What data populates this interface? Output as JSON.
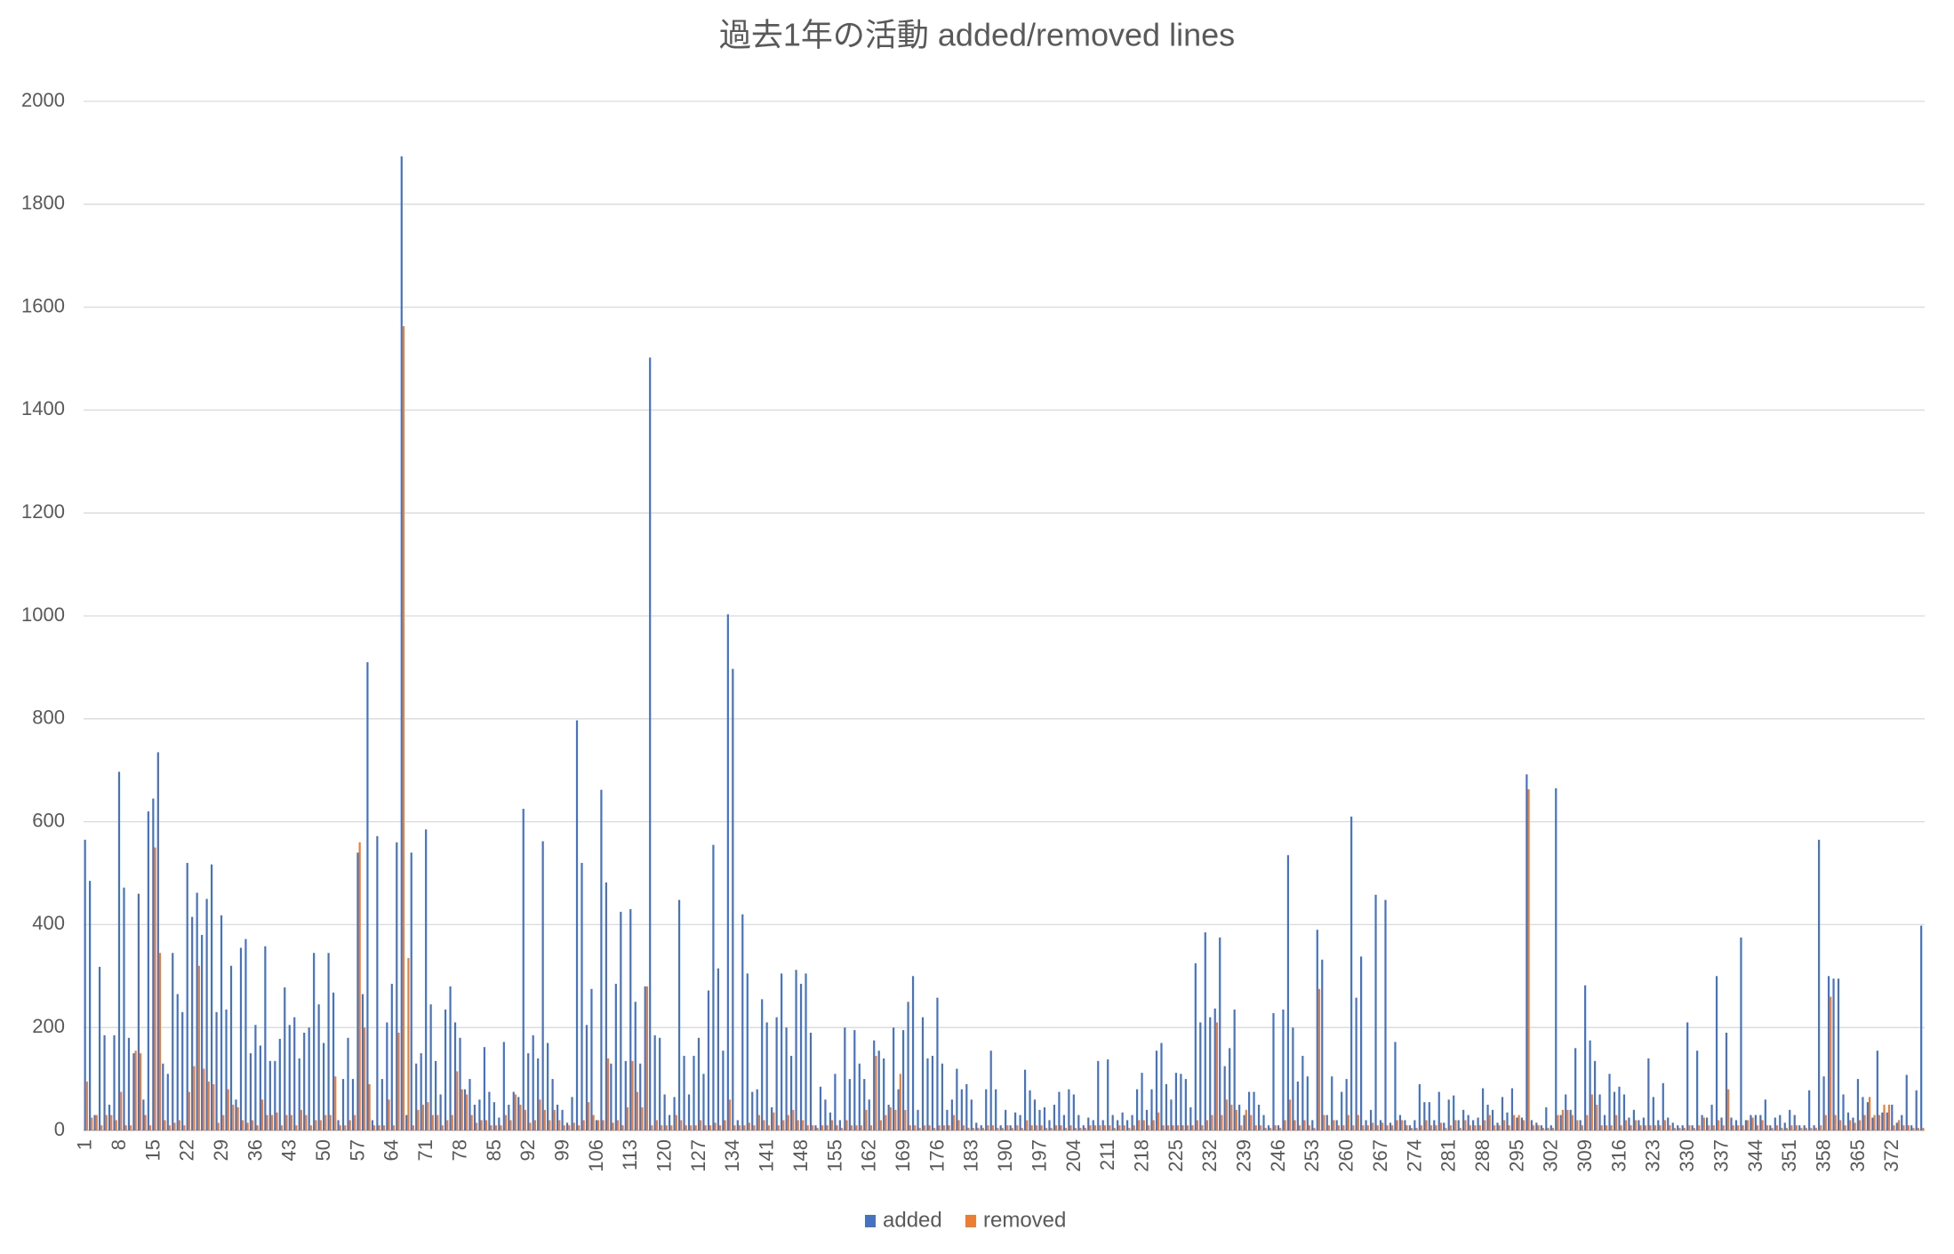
{
  "chart_data": {
    "type": "bar",
    "title": "過去1年の活動 added/removed lines",
    "categories": [
      "1",
      null,
      null,
      null,
      null,
      null,
      null,
      "8",
      null,
      null,
      null,
      null,
      null,
      null,
      "15",
      null,
      null,
      null,
      null,
      null,
      null,
      "22",
      null,
      null,
      null,
      null,
      null,
      null,
      "29",
      null,
      null,
      null,
      null,
      null,
      null,
      "36",
      null,
      null,
      null,
      null,
      null,
      null,
      "43",
      null,
      null,
      null,
      null,
      null,
      null,
      "50",
      null,
      null,
      null,
      null,
      null,
      null,
      "57",
      null,
      null,
      null,
      null,
      null,
      null,
      "64",
      null,
      null,
      null,
      null,
      null,
      null,
      "71",
      null,
      null,
      null,
      null,
      null,
      null,
      "78",
      null,
      null,
      null,
      null,
      null,
      null,
      "85",
      null,
      null,
      null,
      null,
      null,
      null,
      "92",
      null,
      null,
      null,
      null,
      null,
      null,
      "99",
      null,
      null,
      null,
      null,
      null,
      null,
      "106",
      null,
      null,
      null,
      null,
      null,
      null,
      "113",
      null,
      null,
      null,
      null,
      null,
      null,
      "120",
      null,
      null,
      null,
      null,
      null,
      null,
      "127",
      null,
      null,
      null,
      null,
      null,
      null,
      "134",
      null,
      null,
      null,
      null,
      null,
      null,
      "141",
      null,
      null,
      null,
      null,
      null,
      null,
      "148",
      null,
      null,
      null,
      null,
      null,
      null,
      "155",
      null,
      null,
      null,
      null,
      null,
      null,
      "162",
      null,
      null,
      null,
      null,
      null,
      null,
      "169",
      null,
      null,
      null,
      null,
      null,
      null,
      "176",
      null,
      null,
      null,
      null,
      null,
      null,
      "183",
      null,
      null,
      null,
      null,
      null,
      null,
      "190",
      null,
      null,
      null,
      null,
      null,
      null,
      "197",
      null,
      null,
      null,
      null,
      null,
      null,
      "204",
      null,
      null,
      null,
      null,
      null,
      null,
      "211",
      null,
      null,
      null,
      null,
      null,
      null,
      "218",
      null,
      null,
      null,
      null,
      null,
      null,
      "225",
      null,
      null,
      null,
      null,
      null,
      null,
      "232",
      null,
      null,
      null,
      null,
      null,
      null,
      "239",
      null,
      null,
      null,
      null,
      null,
      null,
      "246",
      null,
      null,
      null,
      null,
      null,
      null,
      "253",
      null,
      null,
      null,
      null,
      null,
      null,
      "260",
      null,
      null,
      null,
      null,
      null,
      null,
      "267",
      null,
      null,
      null,
      null,
      null,
      null,
      "274",
      null,
      null,
      null,
      null,
      null,
      null,
      "281",
      null,
      null,
      null,
      null,
      null,
      null,
      "288",
      null,
      null,
      null,
      null,
      null,
      null,
      "295",
      null,
      null,
      null,
      null,
      null,
      null,
      "302",
      null,
      null,
      null,
      null,
      null,
      null,
      "309",
      null,
      null,
      null,
      null,
      null,
      null,
      "316",
      null,
      null,
      null,
      null,
      null,
      null,
      "323",
      null,
      null,
      null,
      null,
      null,
      null,
      "330",
      null,
      null,
      null,
      null,
      null,
      null,
      "337",
      null,
      null,
      null,
      null,
      null,
      null,
      "344",
      null,
      null,
      null,
      null,
      null,
      null,
      "351",
      null,
      null,
      null,
      null,
      null,
      null,
      "358",
      null,
      null,
      null,
      null,
      null,
      null,
      "365",
      null,
      null,
      null,
      null,
      null,
      null,
      "372",
      null,
      null,
      null,
      null,
      null,
      null
    ],
    "series": [
      {
        "name": "added",
        "color": "#4472c4",
        "values": [
          565,
          485,
          30,
          318,
          185,
          50,
          185,
          697,
          472,
          180,
          150,
          460,
          60,
          620,
          645,
          735,
          130,
          110,
          345,
          265,
          230,
          520,
          415,
          462,
          380,
          450,
          517,
          230,
          418,
          235,
          320,
          60,
          355,
          372,
          150,
          205,
          165,
          358,
          135,
          135,
          178,
          278,
          205,
          220,
          140,
          190,
          200,
          345,
          245,
          170,
          345,
          268,
          20,
          100,
          180,
          100,
          540,
          265,
          910,
          20,
          572,
          100,
          210,
          285,
          560,
          1893,
          30,
          540,
          130,
          150,
          585,
          245,
          135,
          70,
          235,
          280,
          210,
          180,
          80,
          100,
          50,
          60,
          162,
          75,
          55,
          25,
          172,
          50,
          75,
          65,
          625,
          150,
          185,
          140,
          562,
          170,
          100,
          50,
          40,
          15,
          65,
          797,
          520,
          205,
          275,
          20,
          662,
          482,
          130,
          285,
          425,
          135,
          430,
          250,
          130,
          280,
          1502,
          185,
          180,
          70,
          30,
          65,
          448,
          145,
          70,
          145,
          180,
          110,
          272,
          555,
          315,
          155,
          1003,
          897,
          20,
          420,
          305,
          75,
          80,
          255,
          210,
          45,
          220,
          305,
          200,
          145,
          312,
          285,
          305,
          190,
          10,
          85,
          60,
          35,
          110,
          20,
          200,
          100,
          195,
          130,
          100,
          60,
          175,
          155,
          140,
          50,
          200,
          80,
          195,
          250,
          300,
          40,
          220,
          140,
          145,
          258,
          130,
          40,
          60,
          120,
          80,
          90,
          60,
          15,
          10,
          80,
          155,
          80,
          10,
          40,
          10,
          35,
          30,
          118,
          78,
          60,
          40,
          45,
          20,
          50,
          75,
          30,
          80,
          70,
          30,
          10,
          25,
          20,
          135,
          20,
          138,
          30,
          20,
          35,
          20,
          30,
          80,
          112,
          40,
          80,
          155,
          170,
          90,
          60,
          112,
          110,
          100,
          45,
          325,
          210,
          385,
          220,
          237,
          375,
          125,
          160,
          235,
          50,
          30,
          75,
          75,
          50,
          30,
          10,
          228,
          10,
          235,
          535,
          200,
          95,
          145,
          105,
          20,
          390,
          332,
          30,
          105,
          20,
          75,
          100,
          610,
          258,
          338,
          20,
          40,
          458,
          20,
          448,
          15,
          172,
          30,
          20,
          10,
          20,
          90,
          55,
          55,
          20,
          75,
          15,
          60,
          68,
          20,
          40,
          30,
          20,
          25,
          82,
          50,
          40,
          15,
          65,
          35,
          82,
          25,
          25,
          692,
          20,
          15,
          10,
          45,
          10,
          665,
          30,
          70,
          40,
          160,
          20,
          282,
          175,
          135,
          70,
          30,
          110,
          75,
          85,
          70,
          25,
          40,
          20,
          25,
          140,
          65,
          20,
          92,
          25,
          15,
          10,
          10,
          210,
          10,
          155,
          30,
          25,
          50,
          300,
          25,
          190,
          25,
          20,
          375,
          20,
          30,
          30,
          30,
          60,
          10,
          25,
          30,
          15,
          40,
          30,
          10,
          10,
          78,
          10,
          565,
          105,
          300,
          295,
          295,
          70,
          35,
          25,
          100,
          65,
          55,
          25,
          155,
          35,
          35,
          50,
          15,
          30,
          108,
          10,
          78,
          398
        ]
      },
      {
        "name": "removed",
        "color": "#ed7d31",
        "values": [
          95,
          25,
          30,
          10,
          30,
          30,
          20,
          75,
          10,
          10,
          155,
          150,
          30,
          10,
          550,
          345,
          20,
          10,
          15,
          20,
          10,
          75,
          125,
          320,
          120,
          95,
          90,
          15,
          30,
          80,
          50,
          45,
          20,
          15,
          20,
          10,
          60,
          30,
          30,
          35,
          10,
          30,
          30,
          10,
          40,
          30,
          10,
          20,
          20,
          30,
          30,
          105,
          10,
          10,
          20,
          30,
          560,
          200,
          90,
          10,
          10,
          10,
          60,
          10,
          190,
          1563,
          335,
          10,
          40,
          50,
          55,
          30,
          30,
          10,
          20,
          30,
          115,
          80,
          70,
          30,
          15,
          20,
          20,
          10,
          10,
          10,
          30,
          20,
          70,
          50,
          40,
          15,
          20,
          60,
          40,
          20,
          40,
          20,
          10,
          10,
          15,
          10,
          20,
          55,
          30,
          20,
          20,
          140,
          15,
          20,
          10,
          45,
          135,
          75,
          45,
          280,
          10,
          20,
          10,
          10,
          10,
          30,
          20,
          10,
          10,
          10,
          20,
          10,
          10,
          15,
          10,
          20,
          60,
          10,
          10,
          10,
          15,
          10,
          30,
          20,
          10,
          35,
          10,
          20,
          30,
          40,
          20,
          20,
          10,
          10,
          5,
          10,
          10,
          20,
          10,
          5,
          20,
          10,
          10,
          10,
          40,
          10,
          145,
          20,
          30,
          45,
          40,
          110,
          40,
          10,
          10,
          5,
          10,
          10,
          5,
          10,
          10,
          10,
          30,
          20,
          10,
          5,
          5,
          5,
          5,
          10,
          10,
          5,
          5,
          10,
          5,
          10,
          5,
          20,
          10,
          10,
          10,
          5,
          5,
          10,
          10,
          5,
          10,
          5,
          5,
          5,
          10,
          10,
          10,
          10,
          10,
          5,
          10,
          10,
          5,
          10,
          20,
          20,
          10,
          20,
          35,
          10,
          10,
          10,
          10,
          10,
          10,
          10,
          20,
          10,
          20,
          30,
          210,
          30,
          60,
          50,
          40,
          10,
          40,
          30,
          10,
          10,
          5,
          5,
          10,
          5,
          20,
          60,
          20,
          10,
          20,
          10,
          5,
          275,
          30,
          10,
          20,
          10,
          10,
          30,
          10,
          30,
          10,
          10,
          15,
          10,
          15,
          10,
          10,
          20,
          20,
          10,
          5,
          5,
          10,
          20,
          10,
          10,
          15,
          5,
          10,
          20,
          5,
          20,
          10,
          10,
          10,
          20,
          30,
          10,
          10,
          20,
          10,
          30,
          30,
          20,
          663,
          10,
          10,
          5,
          5,
          5,
          30,
          40,
          40,
          30,
          20,
          10,
          30,
          70,
          50,
          10,
          10,
          10,
          30,
          10,
          20,
          10,
          20,
          10,
          10,
          10,
          10,
          10,
          20,
          10,
          5,
          5,
          5,
          10,
          5,
          10,
          25,
          10,
          10,
          20,
          10,
          80,
          10,
          10,
          10,
          20,
          25,
          10,
          20,
          10,
          5,
          10,
          5,
          5,
          10,
          10,
          5,
          5,
          5,
          5,
          10,
          30,
          260,
          30,
          20,
          10,
          20,
          15,
          20,
          30,
          65,
          30,
          30,
          50,
          50,
          10,
          20,
          10,
          10,
          5,
          5,
          5
        ]
      }
    ],
    "ylim": [
      0,
      2000
    ],
    "yticks": [
      0,
      200,
      400,
      600,
      800,
      1000,
      1200,
      1400,
      1600,
      1800,
      2000
    ],
    "grid": true,
    "legend": "bottom"
  }
}
